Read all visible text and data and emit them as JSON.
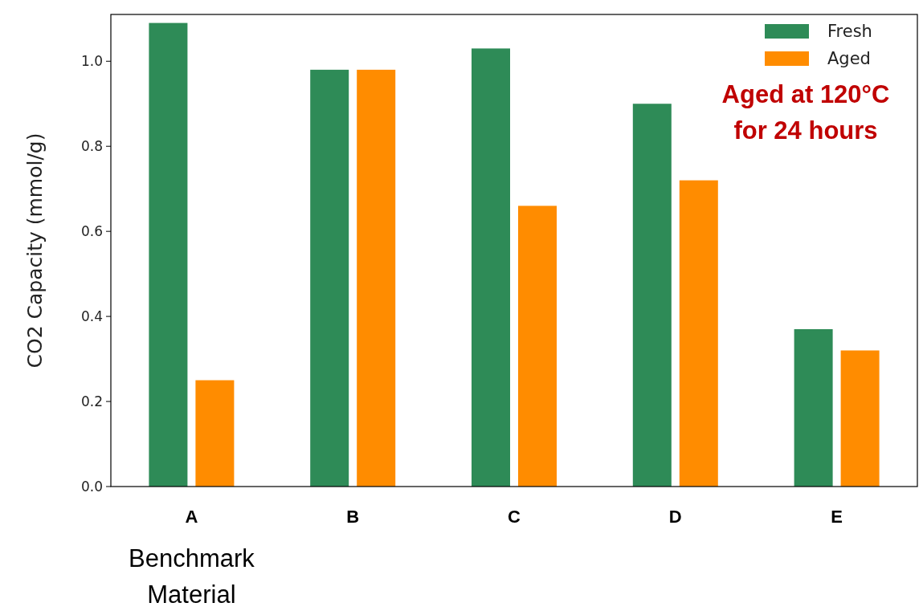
{
  "chart_data": {
    "type": "bar",
    "ylabel": "CO2 Capacity (mmol/g)",
    "categories": [
      "A",
      "B",
      "C",
      "D",
      "E"
    ],
    "series": [
      {
        "name": "Fresh",
        "color": "#2e8b57",
        "values": [
          1.09,
          0.98,
          1.03,
          0.9,
          0.37
        ]
      },
      {
        "name": "Aged",
        "color": "#ff8c00",
        "values": [
          0.25,
          0.98,
          0.66,
          0.72,
          0.32
        ]
      }
    ],
    "ylim": [
      0,
      1.11
    ],
    "yticks": [
      {
        "value": 0,
        "label": "0.0"
      },
      {
        "value": 0.2,
        "label": "0.2"
      },
      {
        "value": 0.4,
        "label": "0.4"
      },
      {
        "value": 0.6,
        "label": "0.6"
      },
      {
        "value": 0.8,
        "label": "0.8"
      },
      {
        "value": 1,
        "label": "1.0"
      }
    ],
    "legend": "top right",
    "grid": false,
    "annotations": [
      "Aged at 120°C\nfor 24 hours",
      "Benchmark\nMaterial"
    ]
  }
}
